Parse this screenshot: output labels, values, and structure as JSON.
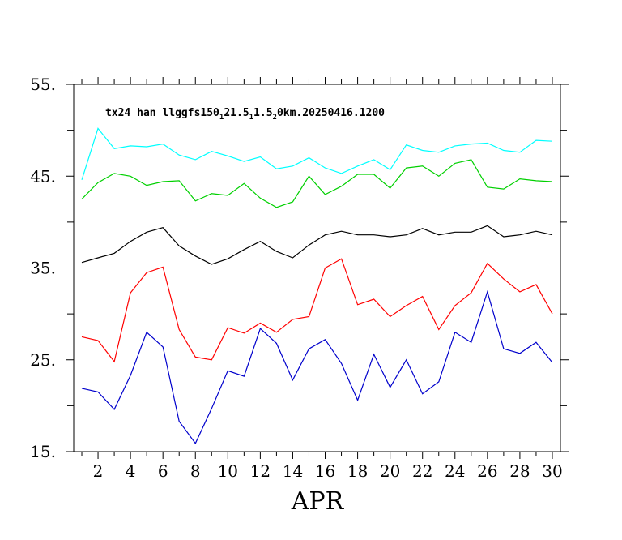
{
  "chart_data": {
    "type": "line",
    "title": "tx24 han llggfs150 21.5​11.5​20km.20250416.1200",
    "title_parts": [
      {
        "t": "tx24 han llggfs150",
        "sub": false
      },
      {
        "t": "1",
        "sub": true
      },
      {
        "t": "21.5",
        "sub": false
      },
      {
        "t": "1",
        "sub": true
      },
      {
        "t": "1.5",
        "sub": false
      },
      {
        "t": "2",
        "sub": true
      },
      {
        "t": "0km.20250416.1200",
        "sub": false
      }
    ],
    "xlabel": "APR",
    "ylabel": "",
    "xlim": [
      0.5,
      30.5
    ],
    "ylim": [
      15,
      55
    ],
    "x_tick_labels": [
      "2",
      "4",
      "6",
      "8",
      "10",
      "12",
      "14",
      "16",
      "18",
      "20",
      "22",
      "24",
      "26",
      "28",
      "30"
    ],
    "y_tick_labels": [
      "15.",
      "25.",
      "35.",
      "45.",
      "55."
    ],
    "grid": false,
    "x": [
      1,
      2,
      3,
      4,
      5,
      6,
      7,
      8,
      9,
      10,
      11,
      12,
      13,
      14,
      15,
      16,
      17,
      18,
      19,
      20,
      21,
      22,
      23,
      24,
      25,
      26,
      27,
      28,
      29,
      30
    ],
    "series": [
      {
        "color": "#00ffff",
        "values": [
          44.6,
          50.2,
          48.0,
          48.3,
          48.2,
          48.5,
          47.3,
          46.8,
          47.7,
          47.2,
          46.6,
          47.1,
          45.8,
          46.1,
          47.0,
          45.9,
          45.3,
          46.1,
          46.8,
          45.7,
          48.4,
          47.8,
          47.6,
          48.3,
          48.5,
          48.6,
          47.8,
          47.6,
          48.9,
          48.8
        ]
      },
      {
        "color": "#00d000",
        "values": [
          42.5,
          44.3,
          45.3,
          45.0,
          44.0,
          44.4,
          44.5,
          42.3,
          43.1,
          42.9,
          44.2,
          42.6,
          41.6,
          42.2,
          45.0,
          43.0,
          43.9,
          45.2,
          45.2,
          43.7,
          45.9,
          46.1,
          45.0,
          46.4,
          46.8,
          43.8,
          43.6,
          44.7,
          44.5,
          44.4
        ]
      },
      {
        "color": "#000000",
        "values": [
          35.6,
          36.1,
          36.6,
          37.9,
          38.9,
          39.4,
          37.4,
          36.3,
          35.4,
          36.0,
          37.0,
          37.9,
          36.8,
          36.1,
          37.5,
          38.6,
          39.0,
          38.6,
          38.6,
          38.4,
          38.6,
          39.3,
          38.6,
          38.9,
          38.9,
          39.6,
          38.4,
          38.6,
          39.0,
          38.6
        ]
      },
      {
        "color": "#ff0000",
        "values": [
          27.5,
          27.1,
          24.8,
          32.3,
          34.5,
          35.1,
          28.3,
          25.3,
          25.0,
          28.5,
          27.9,
          29.0,
          28.0,
          29.4,
          29.7,
          35.0,
          36.0,
          31.0,
          31.6,
          29.7,
          30.9,
          31.9,
          28.3,
          30.9,
          32.3,
          35.5,
          33.8,
          32.4,
          33.2,
          30.0
        ]
      },
      {
        "color": "#0000cc",
        "values": [
          21.9,
          21.5,
          19.6,
          23.3,
          28.0,
          26.4,
          18.3,
          15.9,
          19.7,
          23.8,
          23.2,
          28.4,
          26.8,
          22.8,
          26.2,
          27.2,
          24.6,
          20.6,
          25.6,
          22.0,
          25.0,
          21.3,
          22.6,
          28.0,
          26.9,
          32.4,
          26.2,
          25.7,
          26.9,
          24.7
        ]
      }
    ]
  }
}
